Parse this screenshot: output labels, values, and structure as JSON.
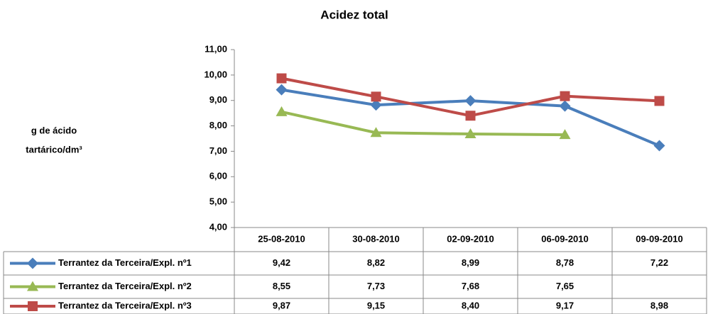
{
  "chart_data": {
    "type": "line",
    "title": "Acidez total",
    "y_label": [
      "g  de ácido",
      "tartárico/dm³"
    ],
    "categories": [
      "25-08-2010",
      "30-08-2010",
      "02-09-2010",
      "06-09-2010",
      "09-09-2010"
    ],
    "series": [
      {
        "name": "Terrantez da Terceira/Expl. nº1",
        "color": "#4a7ebb",
        "marker": "diamond",
        "values": [
          9.42,
          8.82,
          8.99,
          8.78,
          7.22
        ],
        "value_labels": [
          "9,42",
          "8,82",
          "8,99",
          "8,78",
          "7,22"
        ]
      },
      {
        "name": "Terrantez da Terceira/Expl. nº2",
        "color": "#98b954",
        "marker": "triangle",
        "values": [
          8.55,
          7.73,
          7.68,
          7.65,
          null
        ],
        "value_labels": [
          "8,55",
          "7,73",
          "7,68",
          "7,65",
          null
        ]
      },
      {
        "name": "Terrantez da Terceira/Expl. nº3",
        "color": "#be4b48",
        "marker": "square",
        "values": [
          9.87,
          9.15,
          8.4,
          9.17,
          8.98
        ],
        "value_labels": [
          "9,87",
          "9,15",
          "8,40",
          "9,17",
          "8,98"
        ]
      }
    ],
    "ylim": [
      4,
      11
    ],
    "yticks": [
      {
        "value": 4,
        "label": "4,00"
      },
      {
        "value": 5,
        "label": "5,00"
      },
      {
        "value": 6,
        "label": "6,00"
      },
      {
        "value": 7,
        "label": "7,00"
      },
      {
        "value": 8,
        "label": "8,00"
      },
      {
        "value": 9,
        "label": "9,00"
      },
      {
        "value": 10,
        "label": "10,00"
      },
      {
        "value": 11,
        "label": "11,00"
      }
    ],
    "grid": false
  }
}
